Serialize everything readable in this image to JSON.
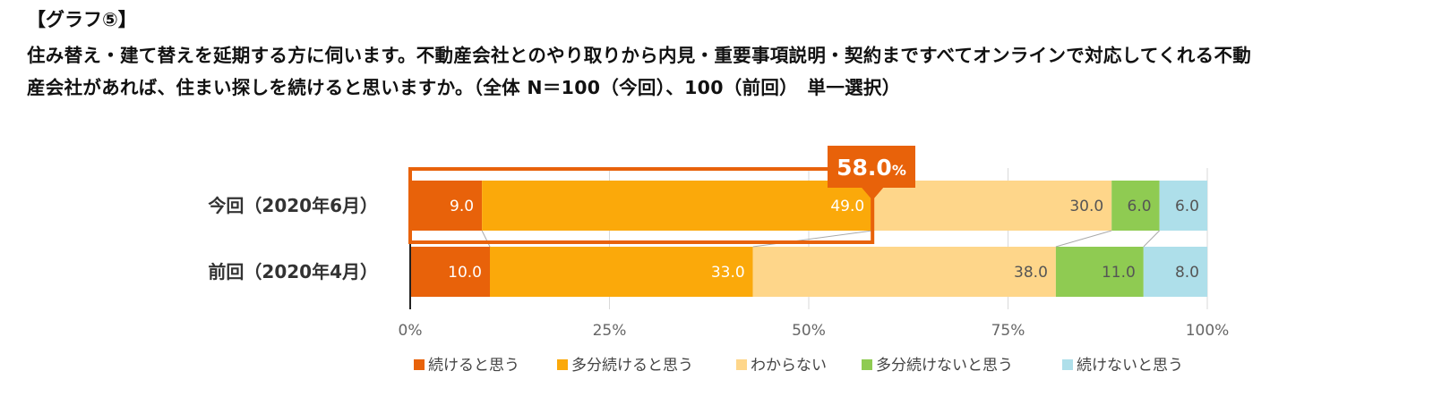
{
  "header": {
    "graph_label": "【グラフ⑤】",
    "question_line1": "住み替え・建て替えを延期する方に伺います。不動産会社とのやり取りから内見・重要事項説明・契約まですべてオンラインで対応してくれる不動",
    "question_line2": "産会社があれば、住まい探しを続けると思いますか。（全体 N＝100（今回）、100（前回）　単一選択）"
  },
  "chart_data": {
    "type": "bar",
    "orientation": "horizontal",
    "stacked": true,
    "percent_stacked": true,
    "categories": [
      "今回（2020年6月）",
      "前回（2020年4月）"
    ],
    "series": [
      {
        "name": "続けると思う",
        "values": [
          9.0,
          10.0
        ],
        "color": "#E8620A",
        "label_color": "#ffffff"
      },
      {
        "name": "多分続けると思う",
        "values": [
          49.0,
          33.0
        ],
        "color": "#FBA90A",
        "label_color": "#ffffff"
      },
      {
        "name": "わからない",
        "values": [
          30.0,
          38.0
        ],
        "color": "#FED68A",
        "label_color": "#555555"
      },
      {
        "name": "多分続けないと思う",
        "values": [
          6.0,
          11.0
        ],
        "color": "#8FCB52",
        "label_color": "#555555"
      },
      {
        "name": "続けないと思う",
        "values": [
          6.0,
          8.0
        ],
        "color": "#AEDFEA",
        "label_color": "#555555"
      }
    ],
    "value_labels": [
      [
        "9.0",
        "49.0",
        "30.0",
        "6.0",
        "6.0"
      ],
      [
        "10.0",
        "33.0",
        "38.0",
        "11.0",
        "8.0"
      ]
    ],
    "xlim": [
      0,
      100
    ],
    "x_ticks": [
      0,
      25,
      50,
      75,
      100
    ],
    "x_tick_labels": [
      "0%",
      "25%",
      "50%",
      "75%",
      "100%"
    ],
    "grid": "vertical",
    "legend_position": "bottom",
    "highlight": {
      "row": 0,
      "value": 58.0,
      "number_text": "58.0",
      "unit_text": "%",
      "color": "#E8620A"
    }
  }
}
